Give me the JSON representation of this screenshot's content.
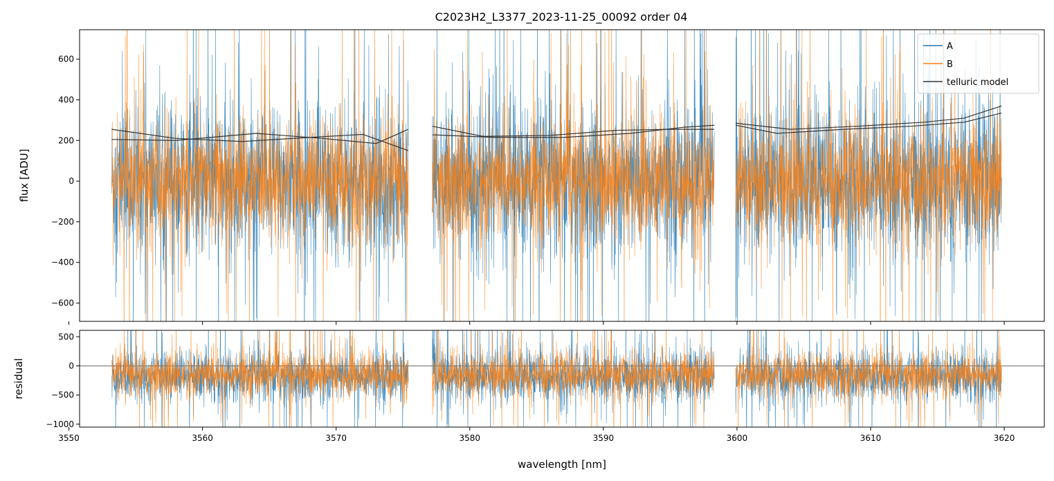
{
  "chart_data": [
    {
      "type": "line",
      "title": "C2023H2_L3377_2023-11-25_00092  order 04",
      "xlabel": "",
      "ylabel": "flux [ADU]",
      "xlim": [
        3550.8,
        3623.0
      ],
      "ylim": [
        -690,
        745
      ],
      "yticks": [
        -600,
        -400,
        -200,
        0,
        200,
        400,
        600
      ],
      "xticks": [
        3550,
        3560,
        3570,
        3580,
        3590,
        3600,
        3610,
        3620
      ],
      "legend": {
        "placement": "top-right",
        "entries": [
          {
            "name": "A",
            "color": "#1f77b4"
          },
          {
            "name": "B",
            "color": "#ff7f0e"
          },
          {
            "name": "telluric model",
            "color": "#333333"
          }
        ]
      },
      "segments": [
        {
          "x_start": 3553.2,
          "x_end": 3575.4
        },
        {
          "x_start": 3577.2,
          "x_end": 3598.3
        },
        {
          "x_start": 3599.9,
          "x_end": 3619.8
        }
      ],
      "series": [
        {
          "name": "A",
          "color": "#1f77b4",
          "center": 0,
          "spread": 190,
          "spike": 700
        },
        {
          "name": "B",
          "color": "#ff7f0e",
          "center": 0,
          "spread": 150,
          "spike": 560
        }
      ],
      "telluric_model": [
        {
          "segment": 0,
          "curves": [
            {
              "x": [
                3553.2,
                3558,
                3563,
                3568,
                3572,
                3575.4
              ],
              "y": [
                255,
                210,
                195,
                215,
                230,
                150
              ]
            },
            {
              "x": [
                3553.2,
                3558,
                3564,
                3569,
                3573,
                3575.4
              ],
              "y": [
                205,
                200,
                235,
                210,
                185,
                255
              ]
            }
          ]
        },
        {
          "segment": 1,
          "curves": [
            {
              "x": [
                3577.2,
                3581,
                3586,
                3591,
                3595,
                3598.3
              ],
              "y": [
                270,
                220,
                225,
                250,
                255,
                255
              ]
            },
            {
              "x": [
                3577.2,
                3582,
                3587,
                3592,
                3596,
                3598.3
              ],
              "y": [
                228,
                215,
                215,
                235,
                265,
                275
              ]
            }
          ]
        },
        {
          "segment": 2,
          "curves": [
            {
              "x": [
                3599.9,
                3604,
                3609,
                3614,
                3617,
                3619.8
              ],
              "y": [
                285,
                255,
                270,
                290,
                310,
                370
              ]
            },
            {
              "x": [
                3599.9,
                3603,
                3608,
                3613,
                3617,
                3619.8
              ],
              "y": [
                275,
                235,
                255,
                270,
                290,
                335
              ]
            }
          ]
        }
      ]
    },
    {
      "type": "line",
      "title": "",
      "xlabel": "wavelength [nm]",
      "ylabel": "residual",
      "xlim": [
        3550.8,
        3623.0
      ],
      "ylim": [
        -1050,
        610
      ],
      "yticks": [
        -1000,
        -500,
        0,
        500
      ],
      "xticks": [
        3550,
        3560,
        3570,
        3580,
        3590,
        3600,
        3610,
        3620
      ],
      "segments": [
        {
          "x_start": 3553.2,
          "x_end": 3575.4
        },
        {
          "x_start": 3577.2,
          "x_end": 3598.3
        },
        {
          "x_start": 3599.9,
          "x_end": 3619.8
        }
      ],
      "series": [
        {
          "name": "A",
          "color": "#1f77b4",
          "center": -180,
          "spread": 220,
          "spike": 850
        },
        {
          "name": "B",
          "color": "#ff7f0e",
          "center": -150,
          "spread": 190,
          "spike": 720
        }
      ],
      "zero_line": 0
    }
  ]
}
